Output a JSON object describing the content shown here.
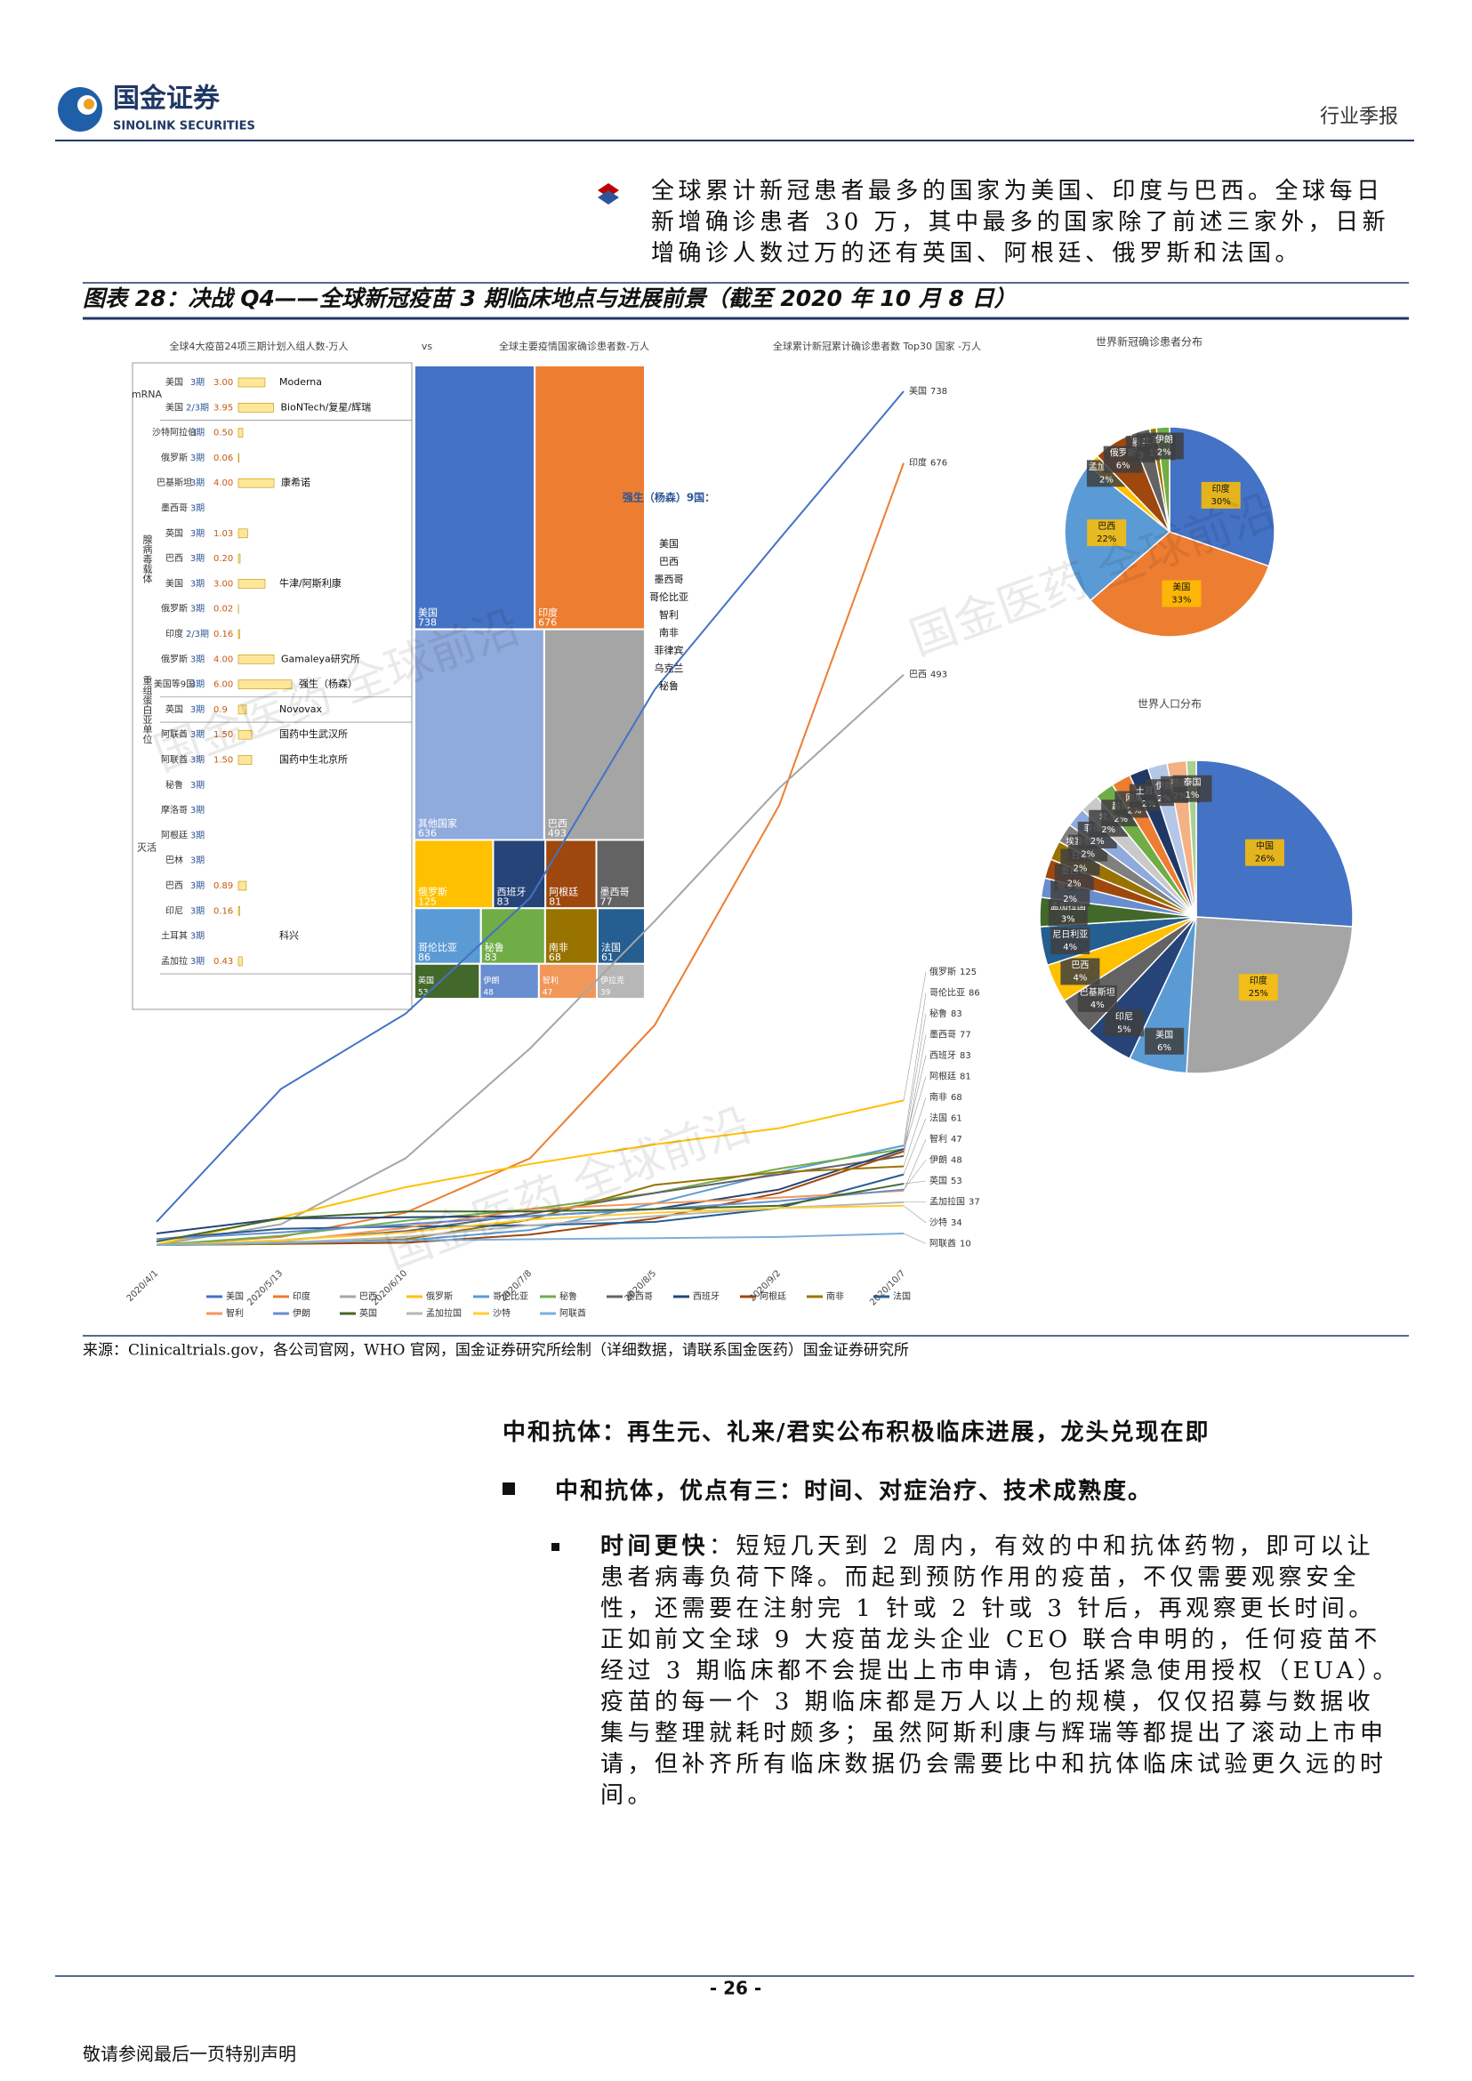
{
  "header": {
    "logo_cn": "国金证券",
    "logo_en": "SINOLINK SECURITIES",
    "report_type": "行业季报"
  },
  "intro_bullet": "全球累计新冠患者最多的国家为美国、印度与巴西。全球每日新增确诊患者 30 万，其中最多的国家除了前述三家外，日新增确诊人数过万的还有英国、阿根廷、俄罗斯和法国。",
  "figure": {
    "title": "图表 28：决战 Q4——全球新冠疫苗 3 期临床地点与进展前景（截至 2020 年 10 月 8 日）",
    "source": "来源：Clinicaltrials.gov，各公司官网，WHO 官网，国金证券研究所绘制（详细数据，请联系国金医药）国金证券研究所",
    "watermark": "国金医药 全球前沿",
    "vs": "vs",
    "annotation": {
      "title": "强生（杨森）9国：",
      "countries": [
        "美国",
        "巴西",
        "墨西哥",
        "哥伦比亚",
        "智利",
        "南非",
        "菲律宾",
        "乌克兰",
        "秘鲁"
      ]
    }
  },
  "vaccine_table": {
    "title": "全球4大疫苗24项三期计划入组人数-万人",
    "groups": [
      {
        "name": "mRNA",
        "rows": [
          {
            "country": "美国",
            "phase": "3期",
            "value": 3.0,
            "value_label": "3.00",
            "company": "Moderna"
          },
          {
            "country": "美国",
            "phase": "2/3期",
            "value": 3.95,
            "value_label": "3.95",
            "company": "BioNTech/复星/辉瑞"
          }
        ]
      },
      {
        "name": "腺病毒载体",
        "rows": [
          {
            "country": "沙特阿拉伯",
            "phase": "3期",
            "value": 0.5,
            "value_label": "0.50",
            "company": null
          },
          {
            "country": "俄罗斯",
            "phase": "3期",
            "value": 0.06,
            "value_label": "0.06",
            "company": null
          },
          {
            "country": "巴基斯坦",
            "phase": "3期",
            "value": 4.0,
            "value_label": "4.00",
            "company": "康希诺"
          },
          {
            "country": "墨西哥",
            "phase": "3期",
            "value": null,
            "value_label": null,
            "company": null
          },
          {
            "country": "英国",
            "phase": "3期",
            "value": 1.03,
            "value_label": "1.03",
            "company": null
          },
          {
            "country": "巴西",
            "phase": "3期",
            "value": 0.2,
            "value_label": "0.20",
            "company": null
          },
          {
            "country": "美国",
            "phase": "3期",
            "value": 3.0,
            "value_label": "3.00",
            "company": "牛津/阿斯利康"
          },
          {
            "country": "俄罗斯",
            "phase": "3期",
            "value": 0.02,
            "value_label": "0.02",
            "company": null
          },
          {
            "country": "印度",
            "phase": "2/3期",
            "value": 0.16,
            "value_label": "0.16",
            "company": null
          },
          {
            "country": "俄罗斯",
            "phase": "3期",
            "value": 4.0,
            "value_label": "4.00",
            "company": "Gamaleya研究所"
          },
          {
            "country": "美国等9国",
            "phase": "3期",
            "value": 6.0,
            "value_label": "6.00",
            "company": "强生（杨森）"
          }
        ]
      },
      {
        "name": "重组蛋白亚单位",
        "rows": [
          {
            "country": "英国",
            "phase": "3期",
            "value": 0.9,
            "value_label": "0.9",
            "company": "Novovax"
          }
        ]
      },
      {
        "name": "灭活",
        "rows": [
          {
            "country": "阿联酋",
            "phase": "3期",
            "value": 1.5,
            "value_label": "1.50",
            "company": "国药中生武汉所"
          },
          {
            "country": "阿联酋",
            "phase": "3期",
            "value": 1.5,
            "value_label": "1.50",
            "company": "国药中生北京所"
          },
          {
            "country": "秘鲁",
            "phase": "3期",
            "value": null,
            "value_label": null,
            "company": null
          },
          {
            "country": "摩洛哥",
            "phase": "3期",
            "value": null,
            "value_label": null,
            "company": null
          },
          {
            "country": "阿根廷",
            "phase": "3期",
            "value": null,
            "value_label": null,
            "company": null
          },
          {
            "country": "巴林",
            "phase": "3期",
            "value": null,
            "value_label": null,
            "company": null
          },
          {
            "country": "巴西",
            "phase": "3期",
            "value": 0.89,
            "value_label": "0.89",
            "company": null
          },
          {
            "country": "印尼",
            "phase": "3期",
            "value": 0.16,
            "value_label": "0.16",
            "company": null
          },
          {
            "country": "土耳其",
            "phase": "3期",
            "value": null,
            "value_label": null,
            "company": "科兴"
          },
          {
            "country": "孟加拉",
            "phase": "3期",
            "value": 0.43,
            "value_label": "0.43",
            "company": null
          }
        ]
      }
    ]
  },
  "chart_data": [
    {
      "type": "treemap",
      "title": "全球主要疫情国家确诊患者数-万人",
      "categories": [
        "美国",
        "印度",
        "其他国家",
        "巴西",
        "俄罗斯",
        "西班牙",
        "阿根廷",
        "墨西哥",
        "哥伦比亚",
        "秘鲁",
        "南非",
        "法国",
        "英国",
        "伊朗",
        "智利",
        "伊拉克"
      ],
      "values": [
        738,
        676,
        636,
        493,
        125,
        83,
        81,
        77,
        86,
        83,
        68,
        61,
        53,
        48,
        47,
        39
      ],
      "colors": [
        "#4472c4",
        "#ed7d31",
        "#8faadc",
        "#a5a5a5",
        "#ffc000",
        "#264478",
        "#9e480e",
        "#636363",
        "#5b9bd5",
        "#70ad47",
        "#997300",
        "#255e91",
        "#43682b",
        "#698ed0",
        "#f1975a",
        "#b7b7b7"
      ]
    },
    {
      "type": "line",
      "title": "全球累计新冠累计确诊患者数 Top30 国家 -万人",
      "x": [
        "2020/4/1",
        "2020/5/13",
        "2020/6/10",
        "2020/7/8",
        "2020/8/5",
        "2020/9/2",
        "2020/10/7"
      ],
      "series": [
        {
          "name": "美国",
          "color": "#4472c4",
          "values": [
            20,
            135,
            200,
            300,
            480,
            610,
            738
          ]
        },
        {
          "name": "印度",
          "color": "#ed7d31",
          "values": [
            0,
            7,
            28,
            75,
            190,
            380,
            676
          ]
        },
        {
          "name": "巴西",
          "color": "#a5a5a5",
          "values": [
            0,
            18,
            75,
            170,
            280,
            395,
            493
          ]
        },
        {
          "name": "俄罗斯",
          "color": "#ffc000",
          "values": [
            0.3,
            24,
            50,
            70,
            87,
            101,
            125
          ]
        },
        {
          "name": "哥伦比亚",
          "color": "#5b9bd5",
          "values": [
            0,
            1,
            4,
            13,
            36,
            63,
            86
          ]
        },
        {
          "name": "秘鲁",
          "color": "#70ad47",
          "values": [
            0,
            8,
            21,
            31,
            45,
            66,
            83
          ]
        },
        {
          "name": "墨西哥",
          "color": "#636363",
          "values": [
            0,
            4,
            12,
            27,
            45,
            61,
            77
          ]
        },
        {
          "name": "西班牙",
          "color": "#264478",
          "values": [
            10,
            23,
            24,
            25,
            31,
            48,
            83
          ]
        },
        {
          "name": "阿根廷",
          "color": "#9e480e",
          "values": [
            0,
            1,
            2,
            9,
            23,
            45,
            81
          ]
        },
        {
          "name": "南非",
          "color": "#997300",
          "values": [
            0,
            1,
            5,
            22,
            52,
            63,
            68
          ]
        },
        {
          "name": "法国",
          "color": "#255e91",
          "values": [
            5,
            14,
            16,
            17,
            20,
            32,
            61
          ]
        },
        {
          "name": "智利",
          "color": "#f1975a",
          "values": [
            0,
            3,
            15,
            31,
            36,
            41,
            47
          ]
        },
        {
          "name": "伊朗",
          "color": "#698ed0",
          "values": [
            5,
            11,
            18,
            25,
            31,
            38,
            48
          ]
        },
        {
          "name": "英国",
          "color": "#43682b",
          "values": [
            3,
            23,
            29,
            29,
            31,
            34,
            53
          ]
        },
        {
          "name": "孟加拉国",
          "color": "#b7b7b7",
          "values": [
            0,
            2,
            7,
            17,
            25,
            32,
            37
          ]
        },
        {
          "name": "沙特",
          "color": "#ffcd33",
          "values": [
            0,
            4,
            11,
            22,
            28,
            32,
            34
          ]
        },
        {
          "name": "阿联酋",
          "color": "#7cafdd",
          "values": [
            0,
            2,
            4,
            5,
            6,
            7,
            10
          ]
        }
      ]
    },
    {
      "type": "pie",
      "title": "世界新冠确诊患者分布",
      "categories": [
        "印度",
        "美国",
        "巴西",
        "孟加拉国",
        "俄罗斯",
        "墨西哥",
        "土耳其",
        "伊朗"
      ],
      "values": [
        30,
        33,
        22,
        2,
        6,
        3,
        1,
        2
      ],
      "value_labels": [
        "30%",
        "33%",
        "22%",
        "2%",
        "6%",
        "3%",
        "1%",
        "2%"
      ],
      "colors": [
        "#4472c4",
        "#ed7d31",
        "#5b9bd5",
        "#ffc000",
        "#9e480e",
        "#636363",
        "#997300",
        "#70ad47"
      ]
    },
    {
      "type": "pie",
      "title": "世界人口分布",
      "categories": [
        "中国",
        "印度",
        "美国",
        "印尼",
        "巴基斯坦",
        "巴西",
        "尼日利亚",
        "孟加拉国",
        "俄罗斯",
        "墨西哥",
        "日本",
        "埃塞俄比亚",
        "菲律宾",
        "埃及",
        "越南",
        "刚果",
        "土耳其",
        "伊朗",
        "德国",
        "泰国"
      ],
      "values": [
        26,
        25,
        6,
        5,
        4,
        4,
        4,
        3,
        2,
        2,
        2,
        2,
        2,
        2,
        2,
        2,
        2,
        2,
        2,
        1
      ],
      "value_labels": [
        "26%",
        "25%",
        "6%",
        "5%",
        "4%",
        "4%",
        "4%",
        "3%",
        "2%",
        "2%",
        "2%",
        "2%",
        "2%",
        "2%",
        "2%",
        "2%",
        "2%",
        "2%",
        "2%",
        "1%"
      ],
      "colors": [
        "#4472c4",
        "#a5a5a5",
        "#5b9bd5",
        "#264478",
        "#636363",
        "#ffc000",
        "#255e91",
        "#43682b",
        "#698ed0",
        "#9e480e",
        "#997300",
        "#7f7f7f",
        "#8faadc",
        "#c9c9c9",
        "#70ad47",
        "#ed7d31",
        "#1f3864",
        "#b4c7e7",
        "#f4b183",
        "#a9d18e"
      ]
    }
  ],
  "section_heading": "中和抗体：再生元、礼来/君实公布积极临床进展，龙头兑现在即",
  "point": "中和抗体，优点有三：时间、对症治疗、技术成熟度。",
  "sub_point": {
    "label": "时间更快",
    "text": "：短短几天到 2 周内，有效的中和抗体药物，即可以让患者病毒负荷下降。而起到预防作用的疫苗，不仅需要观察安全性，还需要在注射完 1 针或 2 针或 3 针后，再观察更长时间。正如前文全球 9 大疫苗龙头企业 CEO 联合申明的，任何疫苗不经过 3 期临床都不会提出上市申请，包括紧急使用授权（EUA）。疫苗的每一个 3 期临床都是万人以上的规模，仅仅招募与数据收集与整理就耗时颇多；虽然阿斯利康与辉瑞等都提出了滚动上市申请，但补齐所有临床数据仍会需要比中和抗体临床试验更久远的时间。"
  },
  "footer": {
    "page": "- 26 -",
    "disclaimer": "敬请参阅最后一页特别声明"
  }
}
